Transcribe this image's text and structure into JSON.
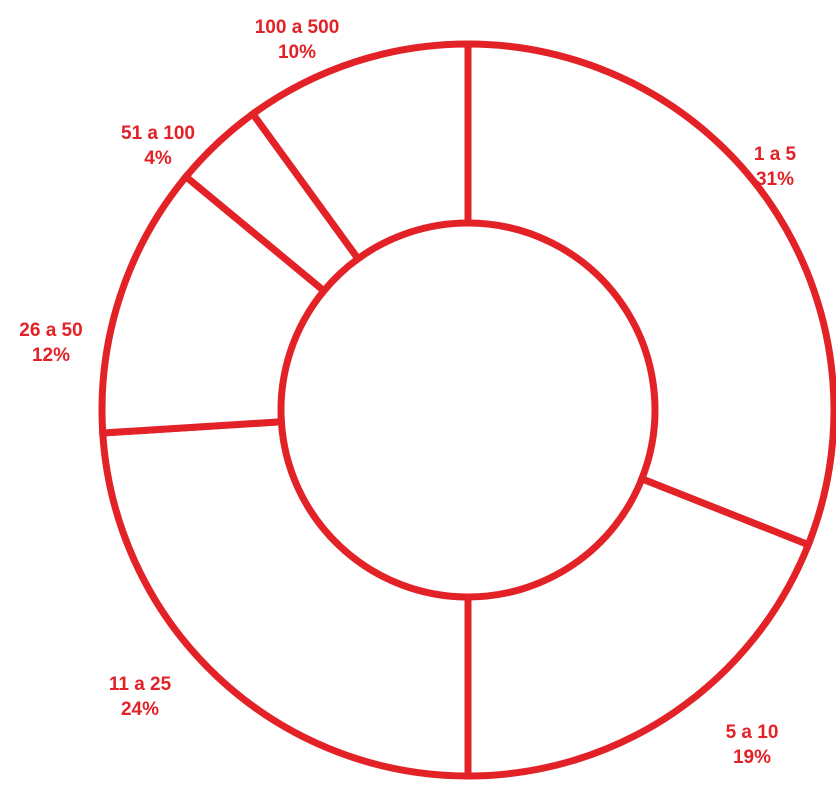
{
  "chart_data": {
    "type": "pie",
    "variant": "donut",
    "title": "",
    "slices": [
      {
        "category": "1 a 5",
        "value": 31,
        "value_label": "31%"
      },
      {
        "category": "5 a 10",
        "value": 19,
        "value_label": "19%"
      },
      {
        "category": "11 a 25",
        "value": 24,
        "value_label": "24%"
      },
      {
        "category": "26 a 50",
        "value": 12,
        "value_label": "12%"
      },
      {
        "category": "51 a 100",
        "value": 4,
        "value_label": "4%"
      },
      {
        "category": "100 a 500",
        "value": 10,
        "value_label": "10%"
      }
    ],
    "start_angle_deg": 0,
    "direction": "clockwise",
    "fill_color": "#ffffff",
    "stroke_color": "#e32228",
    "label_color": "#e32228",
    "legend": "none"
  }
}
